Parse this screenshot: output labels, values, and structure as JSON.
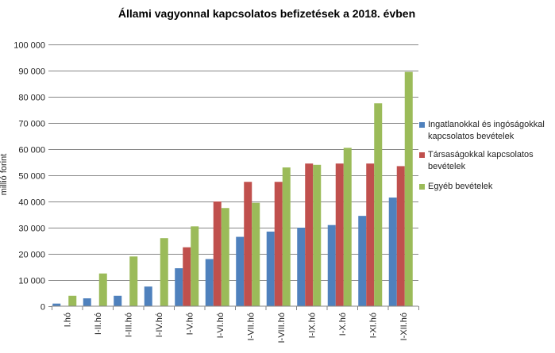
{
  "chart_data": {
    "type": "bar",
    "title": "Állami vagyonnal kapcsolatos befizetések a 2018. évben",
    "ylabel": "millió forint",
    "xlabel": "",
    "ylim": [
      0,
      100000
    ],
    "yticks": [
      "0",
      "10 000",
      "20 000",
      "30 000",
      "40 000",
      "50 000",
      "60 000",
      "70 000",
      "80 000",
      "90 000",
      "100 000"
    ],
    "ytick_values": [
      0,
      10000,
      20000,
      30000,
      40000,
      50000,
      60000,
      70000,
      80000,
      90000,
      100000
    ],
    "grid": true,
    "legend_position": "right",
    "categories": [
      "I.hó",
      "I-II.hó",
      "I-III.hó",
      "I-IV.hó",
      "I-V.hó",
      "I-VI.hó",
      "I-VII.hó",
      "I-VIII.hó",
      "I-IX.hó",
      "I-X.hó",
      "I-XI.hó",
      "I-XII.hó"
    ],
    "series": [
      {
        "name": "Ingatlanokkal és ingóságokkal kapcsolatos bevételek",
        "color": "#4f81bd",
        "values": [
          1000,
          3000,
          4000,
          7500,
          14500,
          18000,
          26500,
          28500,
          30000,
          31000,
          34500,
          41500
        ]
      },
      {
        "name": "Társaságokkal kapcsolatos bevételek",
        "color": "#c0504d",
        "values": [
          0,
          0,
          0,
          0,
          22500,
          40000,
          47500,
          47500,
          54500,
          54500,
          54500,
          53500
        ]
      },
      {
        "name": "Egyéb bevételek",
        "color": "#9bbb59",
        "values": [
          4000,
          12500,
          19000,
          26000,
          30500,
          37500,
          39500,
          53000,
          54000,
          60500,
          77500,
          89500
        ]
      }
    ]
  }
}
